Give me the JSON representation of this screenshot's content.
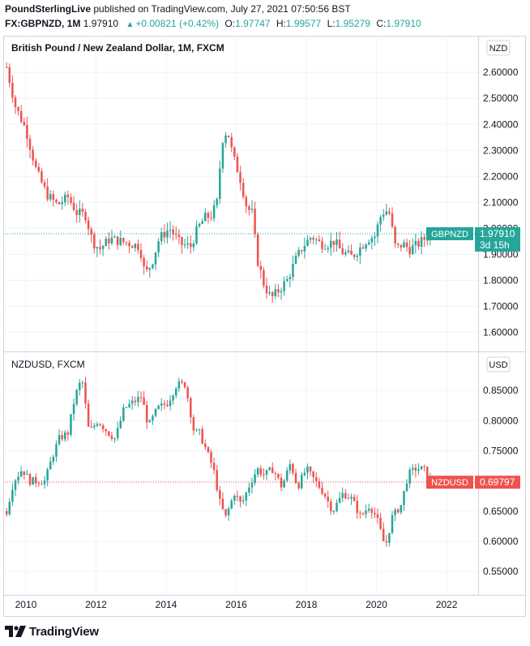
{
  "header": {
    "publisher": "PoundSterlingLive",
    "published_on": "published on TradingView.com, July 27, 2021 07:50:56 BST",
    "symbol_line": "FX:GBPNZD, 1M",
    "last": "1.97910",
    "change": "+0.00821 (+0.42%)",
    "o_label": "O:",
    "o_value": "1.97747",
    "h_label": "H:",
    "h_value": "1.99577",
    "l_label": "L:",
    "l_value": "1.95279",
    "c_label": "C:",
    "c_value": "1.97910"
  },
  "footer": {
    "brand": "TradingView"
  },
  "colors": {
    "up": "#26a69a",
    "down": "#ef5350",
    "grid": "#f0f3fa",
    "axis_text": "#131722"
  },
  "chart_data": [
    {
      "type": "candlestick",
      "title": "British Pound / New Zealand Dollar, 1M, FXCM",
      "currency_badge": "NZD",
      "last_label": "GBPNZD",
      "last_value": "1.97910",
      "countdown": "3d 15h",
      "yticks": [
        "1.60000",
        "1.70000",
        "1.80000",
        "1.90000",
        "2.00000",
        "2.10000",
        "2.20000",
        "2.30000",
        "2.40000",
        "2.50000",
        "2.60000"
      ],
      "ylim": [
        1.57,
        2.71
      ],
      "series": {
        "name": "GBPNZD",
        "points": [
          [
            2009.45,
            2.62
          ],
          [
            2009.7,
            2.47
          ],
          [
            2010.0,
            2.38
          ],
          [
            2010.3,
            2.22
          ],
          [
            2010.6,
            2.13
          ],
          [
            2010.9,
            2.09
          ],
          [
            2011.2,
            2.12
          ],
          [
            2011.45,
            2.06
          ],
          [
            2011.7,
            2.05
          ],
          [
            2011.9,
            1.95
          ],
          [
            2012.1,
            1.92
          ],
          [
            2012.4,
            1.96
          ],
          [
            2012.7,
            1.95
          ],
          [
            2013.0,
            1.94
          ],
          [
            2013.25,
            1.93
          ],
          [
            2013.4,
            1.82
          ],
          [
            2013.6,
            1.87
          ],
          [
            2013.8,
            1.96
          ],
          [
            2014.1,
            2.0
          ],
          [
            2014.4,
            1.94
          ],
          [
            2014.7,
            1.93
          ],
          [
            2014.9,
            2.0
          ],
          [
            2015.1,
            2.04
          ],
          [
            2015.3,
            2.05
          ],
          [
            2015.45,
            2.1
          ],
          [
            2015.6,
            2.34
          ],
          [
            2015.75,
            2.38
          ],
          [
            2015.9,
            2.28
          ],
          [
            2016.1,
            2.2
          ],
          [
            2016.3,
            2.08
          ],
          [
            2016.45,
            2.06
          ],
          [
            2016.6,
            1.88
          ],
          [
            2016.8,
            1.78
          ],
          [
            2017.0,
            1.73
          ],
          [
            2017.2,
            1.76
          ],
          [
            2017.45,
            1.8
          ],
          [
            2017.7,
            1.88
          ],
          [
            2017.9,
            1.93
          ],
          [
            2018.15,
            1.97
          ],
          [
            2018.4,
            1.94
          ],
          [
            2018.6,
            1.94
          ],
          [
            2018.8,
            1.95
          ],
          [
            2019.0,
            1.91
          ],
          [
            2019.3,
            1.89
          ],
          [
            2019.5,
            1.92
          ],
          [
            2019.75,
            1.96
          ],
          [
            2019.95,
            1.97
          ],
          [
            2020.15,
            2.06
          ],
          [
            2020.35,
            2.07
          ],
          [
            2020.55,
            1.92
          ],
          [
            2020.75,
            1.94
          ],
          [
            2020.95,
            1.92
          ],
          [
            2021.2,
            1.94
          ],
          [
            2021.55,
            1.98
          ]
        ]
      }
    },
    {
      "type": "candlestick",
      "title": "NZDUSD, FXCM",
      "currency_badge": "USD",
      "last_label": "NZDUSD",
      "last_value": "0.69797",
      "yticks": [
        "0.55000",
        "0.60000",
        "0.65000",
        "0.70000",
        "0.75000",
        "0.80000",
        "0.85000"
      ],
      "ylim": [
        0.53,
        0.9
      ],
      "series": {
        "name": "NZDUSD",
        "points": [
          [
            2009.45,
            0.65
          ],
          [
            2009.65,
            0.7
          ],
          [
            2009.9,
            0.72
          ],
          [
            2010.1,
            0.7
          ],
          [
            2010.35,
            0.7
          ],
          [
            2010.55,
            0.7
          ],
          [
            2010.75,
            0.74
          ],
          [
            2010.95,
            0.77
          ],
          [
            2011.2,
            0.78
          ],
          [
            2011.4,
            0.84
          ],
          [
            2011.6,
            0.87
          ],
          [
            2011.8,
            0.78
          ],
          [
            2012.05,
            0.8
          ],
          [
            2012.35,
            0.78
          ],
          [
            2012.55,
            0.77
          ],
          [
            2012.8,
            0.82
          ],
          [
            2013.05,
            0.83
          ],
          [
            2013.3,
            0.84
          ],
          [
            2013.5,
            0.79
          ],
          [
            2013.75,
            0.82
          ],
          [
            2014.05,
            0.83
          ],
          [
            2014.3,
            0.86
          ],
          [
            2014.55,
            0.86
          ],
          [
            2014.8,
            0.78
          ],
          [
            2014.95,
            0.78
          ],
          [
            2015.15,
            0.75
          ],
          [
            2015.35,
            0.72
          ],
          [
            2015.55,
            0.66
          ],
          [
            2015.7,
            0.64
          ],
          [
            2015.95,
            0.68
          ],
          [
            2016.15,
            0.66
          ],
          [
            2016.35,
            0.69
          ],
          [
            2016.6,
            0.72
          ],
          [
            2016.8,
            0.71
          ],
          [
            2017.05,
            0.72
          ],
          [
            2017.3,
            0.69
          ],
          [
            2017.55,
            0.73
          ],
          [
            2017.75,
            0.69
          ],
          [
            2018.0,
            0.72
          ],
          [
            2018.25,
            0.7
          ],
          [
            2018.5,
            0.68
          ],
          [
            2018.75,
            0.65
          ],
          [
            2019.05,
            0.68
          ],
          [
            2019.3,
            0.67
          ],
          [
            2019.55,
            0.64
          ],
          [
            2019.8,
            0.66
          ],
          [
            2020.0,
            0.64
          ],
          [
            2020.15,
            0.61
          ],
          [
            2020.25,
            0.59
          ],
          [
            2020.45,
            0.64
          ],
          [
            2020.7,
            0.66
          ],
          [
            2020.9,
            0.71
          ],
          [
            2021.1,
            0.72
          ],
          [
            2021.35,
            0.72
          ],
          [
            2021.55,
            0.7
          ]
        ]
      }
    }
  ],
  "x_axis": {
    "ticks": [
      2010,
      2012,
      2014,
      2016,
      2018,
      2020,
      2022
    ],
    "labels": [
      "2010",
      "2012",
      "2014",
      "2016",
      "2018",
      "2020",
      "2022"
    ],
    "xlim": [
      2009.4,
      2022.9
    ]
  }
}
